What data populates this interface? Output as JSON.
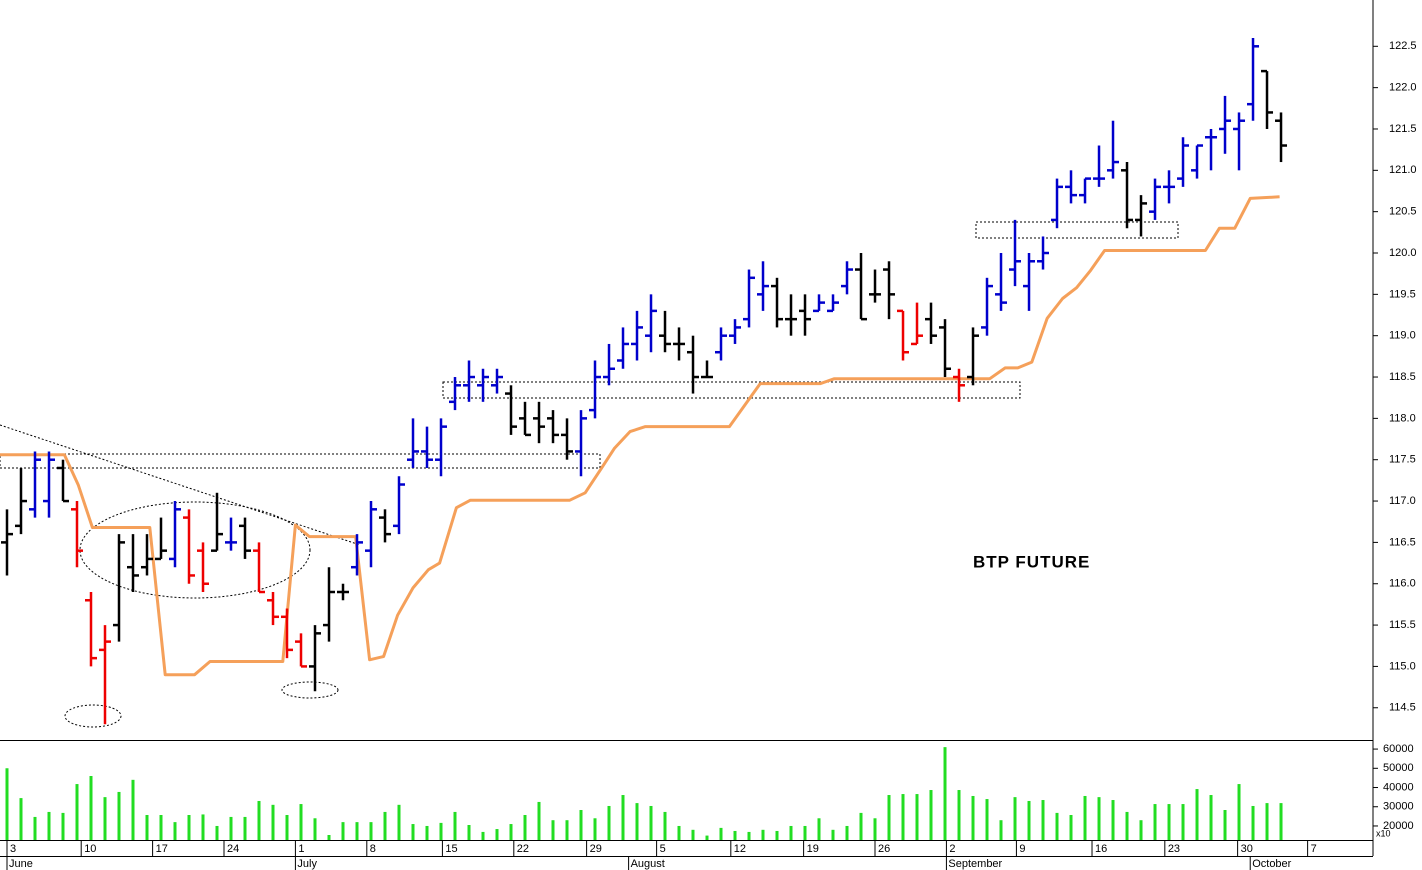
{
  "chart_data": {
    "type": "ohlc",
    "annotation": "BTP FUTURE",
    "open": [
      116.5,
      116.7,
      116.9,
      117.0,
      117.4,
      116.9,
      115.8,
      115.2,
      115.5,
      116.2,
      116.2,
      116.3,
      116.3,
      116.8,
      116.4,
      116.4,
      116.5,
      116.7,
      116.4,
      115.8,
      115.6,
      115.3,
      115.0,
      115.5,
      115.9,
      116.2,
      116.4,
      116.8,
      116.7,
      117.5,
      117.6,
      117.5,
      118.2,
      118.4,
      118.4,
      118.4,
      118.3,
      118.0,
      118.0,
      118.0,
      117.8,
      117.6,
      118.1,
      118.5,
      118.7,
      118.9,
      119.0,
      119.0,
      118.9,
      118.8,
      118.5,
      118.8,
      119.0,
      119.2,
      119.5,
      119.6,
      119.2,
      119.3,
      119.3,
      119.3,
      119.6,
      119.8,
      119.5,
      119.8,
      119.3,
      118.9,
      119.2,
      119.1,
      118.5,
      118.5,
      119.1,
      119.5,
      119.8,
      119.6,
      119.9,
      120.4,
      120.8,
      120.7,
      120.9,
      121.0,
      121.0,
      120.4,
      120.5,
      120.8,
      120.9,
      121.0,
      121.4,
      121.5,
      121.5,
      121.8,
      122.2,
      121.6
    ],
    "high": [
      116.9,
      117.4,
      117.6,
      117.6,
      117.5,
      117.0,
      115.9,
      115.5,
      116.6,
      116.6,
      116.6,
      116.8,
      117.0,
      116.9,
      116.5,
      117.1,
      116.8,
      116.8,
      116.5,
      115.9,
      115.7,
      115.4,
      115.5,
      116.2,
      116.0,
      116.6,
      117.0,
      116.9,
      117.3,
      118.0,
      117.9,
      118.0,
      118.5,
      118.7,
      118.6,
      118.6,
      118.4,
      118.2,
      118.2,
      118.1,
      118.0,
      118.1,
      118.7,
      118.9,
      119.1,
      119.3,
      119.5,
      119.3,
      119.1,
      119.0,
      118.7,
      119.1,
      119.2,
      119.8,
      119.9,
      119.7,
      119.5,
      119.5,
      119.5,
      119.5,
      119.9,
      120.0,
      119.8,
      119.9,
      119.3,
      119.4,
      119.4,
      119.2,
      118.6,
      119.1,
      119.7,
      120.0,
      120.4,
      120.0,
      120.2,
      120.9,
      121.0,
      120.9,
      121.3,
      121.6,
      121.1,
      120.7,
      120.9,
      121.0,
      121.4,
      121.3,
      121.5,
      121.9,
      121.7,
      122.6,
      122.2,
      121.7
    ],
    "low": [
      116.1,
      116.6,
      116.8,
      116.8,
      117.0,
      116.2,
      115.0,
      114.3,
      115.3,
      115.9,
      116.1,
      116.3,
      116.2,
      116.0,
      115.9,
      116.4,
      116.4,
      116.3,
      115.9,
      115.5,
      115.1,
      115.0,
      114.7,
      115.3,
      115.8,
      116.1,
      116.2,
      116.5,
      116.6,
      117.4,
      117.4,
      117.3,
      118.1,
      118.2,
      118.2,
      118.3,
      117.8,
      117.8,
      117.7,
      117.7,
      117.5,
      117.3,
      118.0,
      118.4,
      118.6,
      118.7,
      118.8,
      118.8,
      118.7,
      118.3,
      118.5,
      118.7,
      118.9,
      119.1,
      119.3,
      119.1,
      119.0,
      119.0,
      119.3,
      119.3,
      119.5,
      119.2,
      119.4,
      119.2,
      118.7,
      118.9,
      118.9,
      118.5,
      118.2,
      118.4,
      119.0,
      119.3,
      119.6,
      119.3,
      119.8,
      120.3,
      120.6,
      120.6,
      120.8,
      120.9,
      120.3,
      120.2,
      120.4,
      120.6,
      120.8,
      120.9,
      121.0,
      121.2,
      121.0,
      121.6,
      121.5,
      121.1
    ],
    "close": [
      116.6,
      117.0,
      117.5,
      117.5,
      117.0,
      116.4,
      115.1,
      115.3,
      116.5,
      116.1,
      116.3,
      116.4,
      116.9,
      116.1,
      116.0,
      116.6,
      116.5,
      116.4,
      115.9,
      115.6,
      115.2,
      115.0,
      115.4,
      115.9,
      115.9,
      116.5,
      116.9,
      116.6,
      117.2,
      117.6,
      117.5,
      117.9,
      118.4,
      118.5,
      118.5,
      118.5,
      117.9,
      117.8,
      117.9,
      117.8,
      117.6,
      118.0,
      118.5,
      118.6,
      118.9,
      119.1,
      119.3,
      118.9,
      118.9,
      118.5,
      118.5,
      119.0,
      119.1,
      119.7,
      119.6,
      119.2,
      119.2,
      119.2,
      119.4,
      119.4,
      119.8,
      119.2,
      119.5,
      119.5,
      118.8,
      119.0,
      119.0,
      118.6,
      118.4,
      119.0,
      119.6,
      119.4,
      119.9,
      119.9,
      120.0,
      120.8,
      120.7,
      120.9,
      120.9,
      121.1,
      120.4,
      120.6,
      120.8,
      120.8,
      121.3,
      121.3,
      121.4,
      121.6,
      121.6,
      122.5,
      121.7,
      121.3
    ],
    "colors": [
      "#000000",
      "#000000",
      "#0000cc",
      "#0000cc",
      "#000000",
      "#ee0000",
      "#ee0000",
      "#ee0000",
      "#000000",
      "#000000",
      "#000000",
      "#000000",
      "#0000cc",
      "#ee0000",
      "#ee0000",
      "#000000",
      "#0000cc",
      "#000000",
      "#ee0000",
      "#ee0000",
      "#ee0000",
      "#ee0000",
      "#000000",
      "#000000",
      "#000000",
      "#0000cc",
      "#0000cc",
      "#000000",
      "#0000cc",
      "#0000cc",
      "#0000cc",
      "#0000cc",
      "#0000cc",
      "#0000cc",
      "#0000cc",
      "#0000cc",
      "#000000",
      "#000000",
      "#000000",
      "#000000",
      "#000000",
      "#0000cc",
      "#0000cc",
      "#0000cc",
      "#0000cc",
      "#0000cc",
      "#0000cc",
      "#000000",
      "#000000",
      "#000000",
      "#000000",
      "#0000cc",
      "#0000cc",
      "#0000cc",
      "#0000cc",
      "#000000",
      "#000000",
      "#000000",
      "#0000cc",
      "#0000cc",
      "#0000cc",
      "#000000",
      "#000000",
      "#000000",
      "#ee0000",
      "#ee0000",
      "#000000",
      "#000000",
      "#ee0000",
      "#000000",
      "#0000cc",
      "#0000cc",
      "#0000cc",
      "#0000cc",
      "#0000cc",
      "#0000cc",
      "#0000cc",
      "#0000cc",
      "#0000cc",
      "#0000cc",
      "#000000",
      "#000000",
      "#0000cc",
      "#0000cc",
      "#0000cc",
      "#0000cc",
      "#0000cc",
      "#0000cc",
      "#0000cc",
      "#0000cc",
      "#000000",
      "#000000"
    ],
    "stop_line": {
      "color": "#f5a05a",
      "x": [
        -0.5,
        4.1,
        5.1,
        6.1,
        10.2,
        11.3,
        13.4,
        14.5,
        19.7,
        20.6,
        21.6,
        24.9,
        25.9,
        26.9,
        27.9,
        29.0,
        30.1,
        30.9,
        32.1,
        33.1,
        40.2,
        41.3,
        42.4,
        43.4,
        44.5,
        45.6,
        51.6,
        53.8,
        58.1,
        59.1,
        70.2,
        71.3,
        72.2,
        73.2,
        74.3,
        75.4,
        76.4,
        77.4,
        78.4,
        85.6,
        86.6,
        87.7,
        88.8,
        90.9
      ],
      "values": [
        117.56,
        117.56,
        117.19,
        116.68,
        116.68,
        114.9,
        114.9,
        115.06,
        115.06,
        116.71,
        116.57,
        116.57,
        115.08,
        115.12,
        115.62,
        115.95,
        116.17,
        116.25,
        116.92,
        117.01,
        117.01,
        117.1,
        117.38,
        117.64,
        117.84,
        117.9,
        117.9,
        118.42,
        118.42,
        118.48,
        118.48,
        118.61,
        118.61,
        118.68,
        119.21,
        119.45,
        119.58,
        119.79,
        120.03,
        120.03,
        120.3,
        120.3,
        120.66,
        120.68
      ]
    },
    "volume": {
      "color": "#22dd22",
      "values": [
        50000,
        34500,
        24700,
        27300,
        26800,
        41800,
        46000,
        35000,
        37700,
        44000,
        25700,
        25700,
        22000,
        25700,
        26000,
        20000,
        24700,
        24700,
        33000,
        31000,
        25700,
        31400,
        24000,
        15300,
        22000,
        22000,
        22000,
        27300,
        31000,
        21000,
        20000,
        21600,
        27300,
        20500,
        16900,
        18400,
        21000,
        25700,
        32500,
        23000,
        23000,
        28300,
        24000,
        30400,
        36100,
        31900,
        30400,
        27300,
        20000,
        18000,
        15000,
        19000,
        17400,
        16900,
        18000,
        17400,
        20000,
        20000,
        24000,
        18000,
        20000,
        26800,
        24000,
        36100,
        36600,
        36600,
        38700,
        61000,
        38700,
        35600,
        34000,
        23000,
        35000,
        33000,
        33500,
        26800,
        25700,
        35600,
        35000,
        33500,
        27300,
        23000,
        31400,
        31400,
        31400,
        39200,
        36100,
        28300,
        41800,
        30400,
        31900,
        31900
      ],
      "ylim": [
        12700,
        64200
      ],
      "yticks": [
        20000,
        30000,
        40000,
        50000,
        60000
      ],
      "unit_label": "x10"
    },
    "xlim": [
      -0.5,
      97.57
    ],
    "xticks": [
      {
        "value": 0,
        "label": "3"
      },
      {
        "value": 5.3,
        "label": "10"
      },
      {
        "value": 10.4,
        "label": "17"
      },
      {
        "value": 15.5,
        "label": "24"
      },
      {
        "value": 20.6,
        "label": "1"
      },
      {
        "value": 25.7,
        "label": "8"
      },
      {
        "value": 31.1,
        "label": "15"
      },
      {
        "value": 36.2,
        "label": "22"
      },
      {
        "value": 41.4,
        "label": "29"
      },
      {
        "value": 46.4,
        "label": "5"
      },
      {
        "value": 51.7,
        "label": "12"
      },
      {
        "value": 56.9,
        "label": "19"
      },
      {
        "value": 62.0,
        "label": "26"
      },
      {
        "value": 67.1,
        "label": "2"
      },
      {
        "value": 72.1,
        "label": "9"
      },
      {
        "value": 77.5,
        "label": "16"
      },
      {
        "value": 82.7,
        "label": "23"
      },
      {
        "value": 87.9,
        "label": "30"
      },
      {
        "value": 92.9,
        "label": "7"
      }
    ],
    "month_ticks": [
      {
        "value": 0,
        "label": "June"
      },
      {
        "value": 20.6,
        "label": "July"
      },
      {
        "value": 44.4,
        "label": "August"
      },
      {
        "value": 67.1,
        "label": "September"
      },
      {
        "value": 88.8,
        "label": "October"
      }
    ],
    "ylim": [
      114.11,
      123.06
    ],
    "yticks": [
      114.5,
      {
        "value": 115,
        "label": "115.0"
      },
      115.5,
      {
        "value": 116,
        "label": "116.0"
      },
      116.5,
      {
        "value": 117,
        "label": "117.0"
      },
      117.5,
      {
        "value": 118,
        "label": "118.0"
      },
      118.5,
      {
        "value": 119,
        "label": "119.0"
      },
      119.5,
      {
        "value": 120,
        "label": "120.0"
      },
      120.5,
      {
        "value": 121,
        "label": "121.0"
      },
      121.5,
      {
        "value": 122,
        "label": "122.0"
      },
      122.5
    ]
  }
}
